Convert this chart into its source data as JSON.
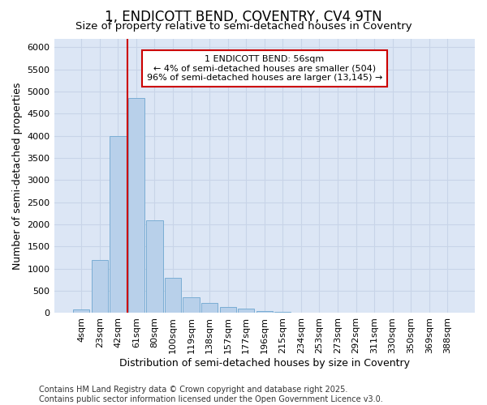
{
  "title_line1": "1, ENDICOTT BEND, COVENTRY, CV4 9TN",
  "title_line2": "Size of property relative to semi-detached houses in Coventry",
  "xlabel": "Distribution of semi-detached houses by size in Coventry",
  "ylabel": "Number of semi-detached properties",
  "categories": [
    "4sqm",
    "23sqm",
    "42sqm",
    "61sqm",
    "80sqm",
    "100sqm",
    "119sqm",
    "138sqm",
    "157sqm",
    "177sqm",
    "196sqm",
    "215sqm",
    "234sqm",
    "253sqm",
    "273sqm",
    "292sqm",
    "311sqm",
    "330sqm",
    "350sqm",
    "369sqm",
    "388sqm"
  ],
  "values": [
    80,
    1200,
    4000,
    4850,
    2100,
    800,
    360,
    230,
    140,
    100,
    50,
    20,
    5,
    2,
    0,
    0,
    0,
    0,
    0,
    0,
    0
  ],
  "bar_color": "#b8d0ea",
  "bar_edge_color": "#7aadd4",
  "grid_color": "#c8d4e8",
  "background_color": "#dce6f5",
  "vline_x": 2.5,
  "vline_color": "#cc0000",
  "annotation_text": "1 ENDICOTT BEND: 56sqm\n← 4% of semi-detached houses are smaller (504)\n96% of semi-detached houses are larger (13,145) →",
  "annotation_box_color": "#cc0000",
  "ylim": [
    0,
    6200
  ],
  "yticks": [
    0,
    500,
    1000,
    1500,
    2000,
    2500,
    3000,
    3500,
    4000,
    4500,
    5000,
    5500,
    6000
  ],
  "footer": "Contains HM Land Registry data © Crown copyright and database right 2025.\nContains public sector information licensed under the Open Government Licence v3.0.",
  "title_fontsize": 12,
  "subtitle_fontsize": 10,
  "label_fontsize": 9,
  "tick_fontsize": 8,
  "footer_fontsize": 7
}
